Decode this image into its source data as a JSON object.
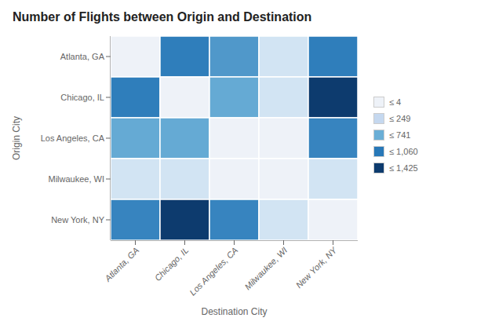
{
  "chart_data": {
    "type": "heatmap",
    "title": "Number of Flights between Origin and Destination",
    "x_label": "Destination City",
    "y_label": "Origin City",
    "x_categories": [
      "Atlanta, GA",
      "Chicago, IL",
      "Los Angeles, CA",
      "Milwaukee, WI",
      "New York, NY"
    ],
    "y_categories": [
      "Atlanta, GA",
      "Chicago, IL",
      "Los Angeles, CA",
      "Milwaukee, WI",
      "New York, NY"
    ],
    "matrix": [
      [
        2,
        950,
        741,
        150,
        950
      ],
      [
        950,
        2,
        600,
        150,
        1425
      ],
      [
        600,
        600,
        2,
        2,
        900
      ],
      [
        150,
        150,
        2,
        2,
        150
      ],
      [
        900,
        1425,
        900,
        150,
        2
      ]
    ],
    "vmin": 0,
    "vmax": 1425,
    "colorscale": [
      [
        0.0,
        "#eef2f8"
      ],
      [
        0.1,
        "#d4e5f4"
      ],
      [
        0.4,
        "#6aaed6"
      ],
      [
        0.7,
        "#2878b8"
      ],
      [
        1.0,
        "#0d3b6e"
      ]
    ],
    "legend_entries": [
      {
        "label": "≤ 4",
        "color": "#eef2f8"
      },
      {
        "label": "≤ 249",
        "color": "#c5d8ef"
      },
      {
        "label": "≤ 741",
        "color": "#6aaed6"
      },
      {
        "label": "≤ 1,060",
        "color": "#2878b8"
      },
      {
        "label": "≤ 1,425",
        "color": "#0d3b6e"
      }
    ]
  }
}
